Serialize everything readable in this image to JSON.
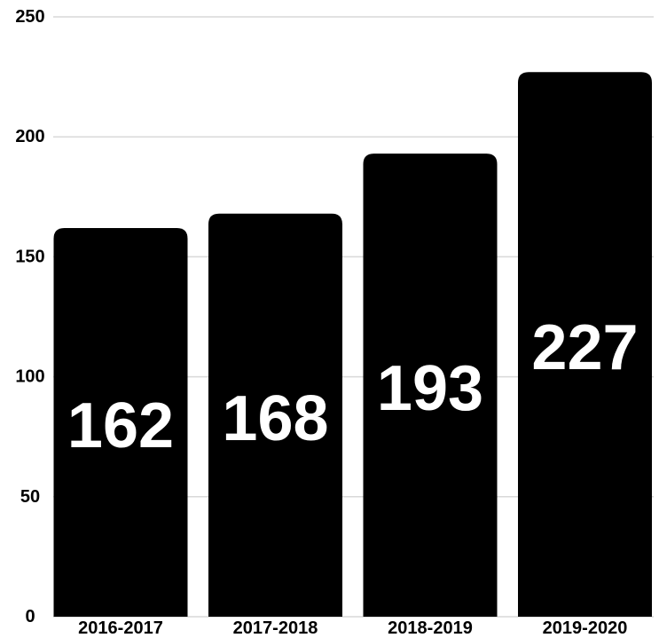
{
  "chart_data": {
    "type": "bar",
    "categories": [
      "2016-2017",
      "2017-2018",
      "2018-2019",
      "2019-2020"
    ],
    "values": [
      162,
      168,
      193,
      227
    ],
    "data_labels": [
      "162",
      "168",
      "193",
      "227"
    ],
    "title": "",
    "xlabel": "",
    "ylabel": "",
    "ylim": [
      0,
      250
    ],
    "yticks": [
      0,
      50,
      100,
      150,
      200,
      250
    ],
    "ytick_labels": [
      "0",
      "50",
      "100",
      "150",
      "200",
      "250"
    ],
    "grid": true,
    "legend": "none",
    "colors": {
      "bar": "#000000",
      "data_label": "#ffffff",
      "grid": "#d9d9d9",
      "text": "#000000",
      "background": "#ffffff"
    }
  }
}
